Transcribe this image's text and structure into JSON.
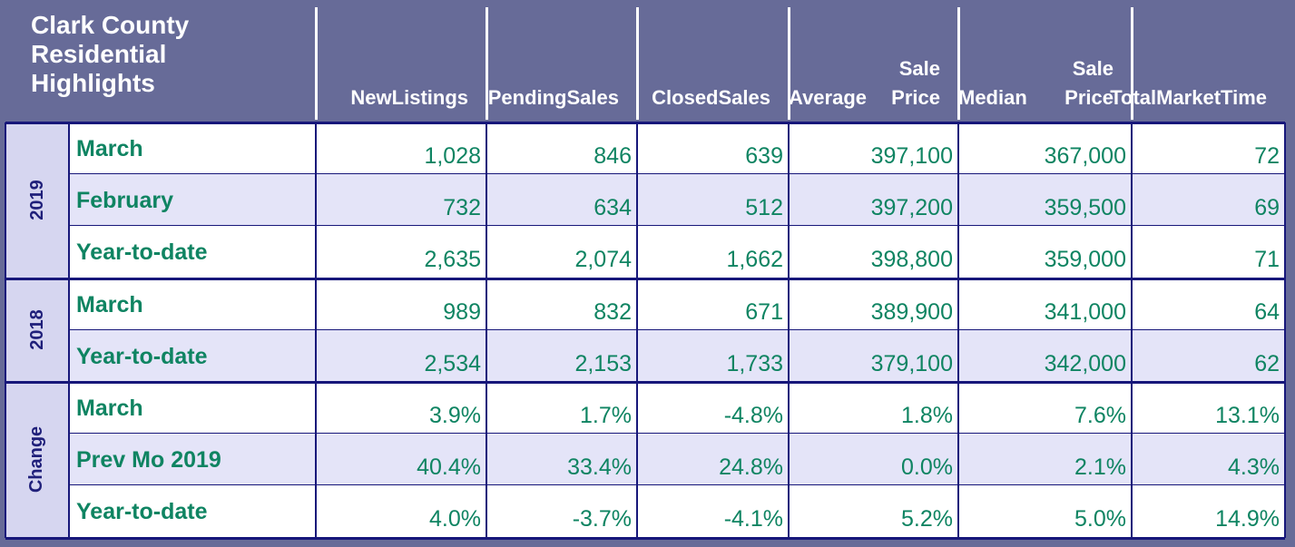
{
  "chart_data": {
    "type": "table",
    "title": [
      "Clark County",
      "Residential",
      "Highlights"
    ],
    "columns": [
      {
        "key": "new_listings",
        "label": [
          "New",
          "Listings"
        ]
      },
      {
        "key": "pending_sales",
        "label": [
          "Pending",
          "Sales"
        ]
      },
      {
        "key": "closed_sales",
        "label": [
          "Closed",
          "Sales"
        ]
      },
      {
        "key": "average_sale_price",
        "label": [
          "Average",
          "Sale Price"
        ]
      },
      {
        "key": "median_sale_price",
        "label": [
          "Median",
          "Sale Price"
        ]
      },
      {
        "key": "total_market_time",
        "label": [
          "Total",
          "Market",
          "Time"
        ]
      }
    ],
    "groups": [
      {
        "name": "2019",
        "rows": [
          {
            "label": "March",
            "values": [
              "1,028",
              "846",
              "639",
              "397,100",
              "367,000",
              "72"
            ]
          },
          {
            "label": "February",
            "values": [
              "732",
              "634",
              "512",
              "397,200",
              "359,500",
              "69"
            ]
          },
          {
            "label": "Year-to-date",
            "values": [
              "2,635",
              "2,074",
              "1,662",
              "398,800",
              "359,000",
              "71"
            ]
          }
        ]
      },
      {
        "name": "2018",
        "rows": [
          {
            "label": "March",
            "values": [
              "989",
              "832",
              "671",
              "389,900",
              "341,000",
              "64"
            ]
          },
          {
            "label": "Year-to-date",
            "values": [
              "2,534",
              "2,153",
              "1,733",
              "379,100",
              "342,000",
              "62"
            ]
          }
        ]
      },
      {
        "name": "Change",
        "rows": [
          {
            "label": "March",
            "values": [
              "3.9%",
              "1.7%",
              "-4.8%",
              "1.8%",
              "7.6%",
              "13.1%"
            ]
          },
          {
            "label": "Prev Mo 2019",
            "values": [
              "40.4%",
              "33.4%",
              "24.8%",
              "0.0%",
              "2.1%",
              "4.3%"
            ]
          },
          {
            "label": "Year-to-date",
            "values": [
              "4.0%",
              "-3.7%",
              "-4.1%",
              "5.2%",
              "5.0%",
              "14.9%"
            ]
          }
        ]
      }
    ]
  }
}
